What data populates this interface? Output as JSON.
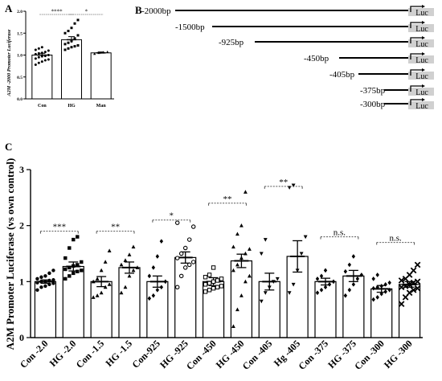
{
  "figure": {
    "panel_a": {
      "letter": "A",
      "sig": [
        "****",
        "*"
      ]
    },
    "panel_b": {
      "letter": "B",
      "luc_label": "Luc",
      "constructs": [
        "-2000bp",
        "-1500bp",
        "-925bp",
        "-450bp",
        "-405bp",
        "-375bp",
        "-300bp"
      ]
    },
    "panel_c": {
      "letter": "C",
      "sig": [
        "***",
        "**",
        "*",
        "**",
        "**",
        "n.s.",
        "n.s."
      ]
    }
  },
  "chart_data": [
    {
      "type": "bar",
      "panel": "A",
      "ylabel": "A2M -2000 Promoter Luciferase",
      "categories": [
        "Con",
        "HG",
        "Man"
      ],
      "values": [
        1.0,
        1.35,
        1.05
      ],
      "errors": [
        0.04,
        0.07,
        0.02
      ],
      "ylim": [
        0,
        2.0
      ],
      "yticks": [
        "0.0",
        "0.5",
        "1.0",
        "1.5",
        "2.0"
      ],
      "points": [
        [
          0.78,
          0.82,
          0.85,
          0.88,
          0.9,
          0.92,
          0.95,
          0.97,
          0.98,
          1.0,
          1.02,
          1.04,
          1.05,
          1.07,
          1.1,
          1.12,
          1.15,
          1.18
        ],
        [
          1.12,
          1.15,
          1.18,
          1.2,
          1.22,
          1.25,
          1.28,
          1.32,
          1.38,
          1.45,
          1.5,
          1.55,
          1.62,
          1.72,
          1.8
        ],
        [
          1.03,
          1.05,
          1.06,
          1.07
        ]
      ],
      "significance": [
        {
          "from": 0,
          "to": 1,
          "label": "****"
        },
        {
          "from": 1,
          "to": 2,
          "label": "*"
        }
      ]
    },
    {
      "type": "bar",
      "panel": "C",
      "ylabel": "A2M Promoter Luciferase (vs own control)",
      "categories": [
        "Con -2.0",
        "HG -2.0",
        "Con -1.5",
        "HG -1.5",
        "Con-925",
        "HG -925",
        "Con -450",
        "HG -450",
        "Con -405",
        "Hg -405",
        "Con -375",
        "HG -375",
        "Con -300",
        "HG -300"
      ],
      "values": [
        1.0,
        1.27,
        1.0,
        1.25,
        1.0,
        1.43,
        1.0,
        1.37,
        1.0,
        1.45,
        1.0,
        1.1,
        0.87,
        0.95
      ],
      "errors": [
        0.03,
        0.08,
        0.09,
        0.1,
        0.1,
        0.1,
        0.07,
        0.12,
        0.15,
        0.28,
        0.06,
        0.1,
        0.06,
        0.05
      ],
      "ylim": [
        0,
        3
      ],
      "yticks": [
        "0",
        "1",
        "2",
        "3"
      ],
      "markers": [
        "circle",
        "square",
        "triangle",
        "triangle",
        "diamond",
        "circle-open",
        "square-open",
        "triangle",
        "triangle-down",
        "triangle-down",
        "diamond",
        "diamond",
        "diamond",
        "x"
      ],
      "points": [
        [
          0.85,
          0.9,
          0.92,
          0.95,
          0.97,
          0.98,
          1.0,
          1.0,
          1.02,
          1.03,
          1.05,
          1.08,
          1.1,
          1.15,
          1.2
        ],
        [
          1.05,
          1.1,
          1.15,
          1.18,
          1.2,
          1.22,
          1.25,
          1.28,
          1.3,
          1.35,
          1.42,
          1.6,
          1.75,
          1.8
        ],
        [
          0.72,
          0.75,
          0.8,
          0.9,
          0.95,
          1.0,
          1.05,
          1.2,
          1.35,
          1.55
        ],
        [
          0.8,
          0.9,
          1.1,
          1.2,
          1.25,
          1.3,
          1.38,
          1.48,
          1.62
        ],
        [
          0.7,
          0.75,
          0.85,
          0.9,
          1.0,
          1.1,
          1.25,
          1.45,
          1.72
        ],
        [
          0.9,
          1.1,
          1.25,
          1.3,
          1.35,
          1.42,
          1.5,
          1.6,
          1.75,
          1.98,
          2.05
        ],
        [
          0.82,
          0.85,
          0.88,
          0.9,
          0.92,
          0.95,
          0.97,
          1.0,
          1.02,
          1.05,
          1.08,
          1.12,
          1.25
        ],
        [
          0.2,
          0.5,
          0.75,
          1.0,
          1.1,
          1.2,
          1.3,
          1.42,
          1.5,
          1.58,
          1.62,
          1.85,
          2.0,
          2.6
        ],
        [
          0.65,
          0.8,
          0.9,
          1.0,
          1.05,
          1.5,
          1.75
        ],
        [
          0.8,
          0.95,
          1.2,
          1.5,
          1.8,
          2.68,
          2.72
        ],
        [
          0.8,
          0.85,
          0.9,
          0.95,
          1.0,
          1.05,
          1.1,
          1.2
        ],
        [
          0.75,
          0.85,
          0.95,
          1.05,
          1.12,
          1.18,
          1.3,
          1.45
        ],
        [
          0.68,
          0.72,
          0.78,
          0.82,
          0.85,
          0.88,
          0.9,
          0.92,
          0.95,
          0.98,
          1.05,
          1.12
        ],
        [
          0.6,
          0.72,
          0.8,
          0.85,
          0.88,
          0.9,
          0.92,
          0.95,
          0.98,
          1.0,
          1.02,
          1.05,
          1.12,
          1.2,
          1.3
        ]
      ],
      "significance": [
        {
          "from": 0,
          "to": 1,
          "label": "***"
        },
        {
          "from": 2,
          "to": 3,
          "label": "**"
        },
        {
          "from": 4,
          "to": 5,
          "label": "*"
        },
        {
          "from": 6,
          "to": 7,
          "label": "**"
        },
        {
          "from": 8,
          "to": 9,
          "label": "**"
        },
        {
          "from": 10,
          "to": 11,
          "label": "n.s."
        },
        {
          "from": 12,
          "to": 13,
          "label": "n.s."
        }
      ]
    }
  ]
}
